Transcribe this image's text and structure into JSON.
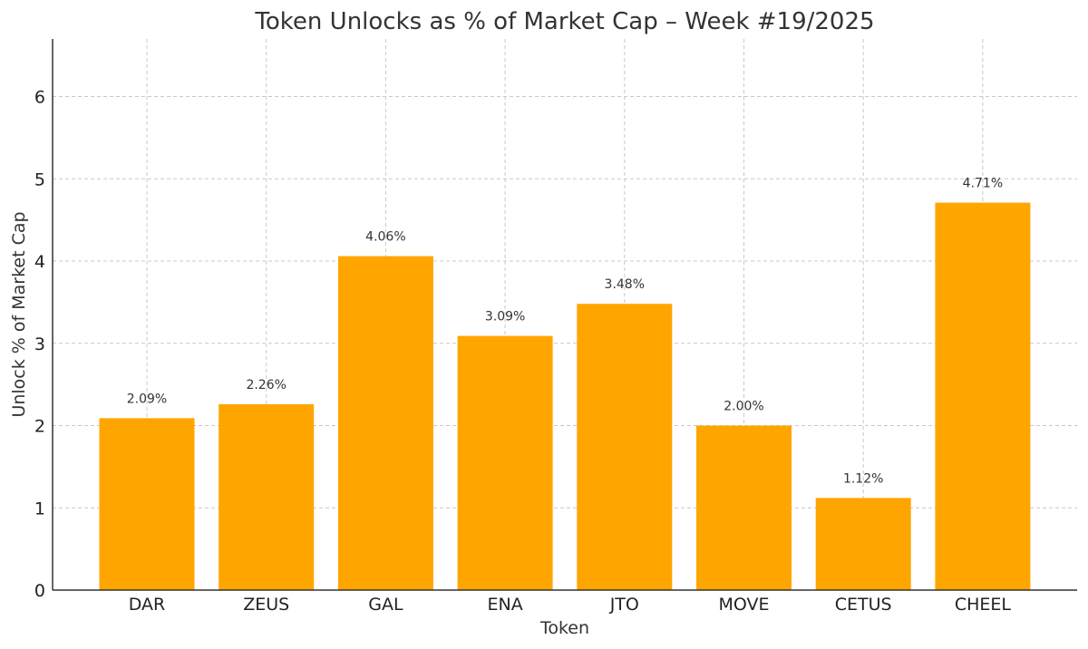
{
  "chart_data": {
    "type": "bar",
    "title": "Token Unlocks as % of Market Cap – Week #19/2025",
    "xlabel": "Token",
    "ylabel": "Unlock % of Market Cap",
    "categories": [
      "DAR",
      "ZEUS",
      "GAL",
      "ENA",
      "JTO",
      "MOVE",
      "CETUS",
      "CHEEL"
    ],
    "values": [
      2.09,
      2.26,
      4.06,
      3.09,
      3.48,
      2.0,
      1.12,
      4.71
    ],
    "data_labels": [
      "2.09%",
      "2.26%",
      "4.06%",
      "3.09%",
      "3.48%",
      "2.00%",
      "1.12%",
      "4.71%"
    ],
    "yticks": [
      0,
      1,
      2,
      3,
      4,
      5,
      6
    ],
    "ylim": [
      0,
      6.7
    ],
    "grid": true,
    "bar_color": "#FFA500"
  }
}
